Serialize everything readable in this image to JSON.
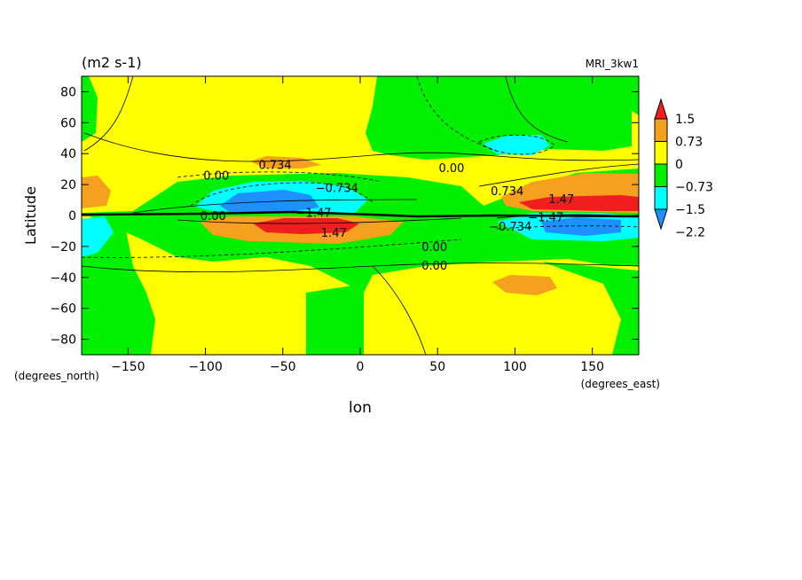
{
  "chart_data": {
    "type": "heatmap",
    "title_left": "(m2 s-1)",
    "title_right": "MRI_3kw1",
    "xlabel": "lon",
    "ylabel": "Latitude",
    "x_unit": "(degrees_east)",
    "y_unit": "(degrees_north)",
    "xlim": [
      -180,
      180
    ],
    "ylim": [
      -90,
      90
    ],
    "x_ticks": [
      -150,
      -100,
      -50,
      0,
      50,
      100,
      150
    ],
    "x_tick_labels": [
      "−150",
      "−100",
      "−50",
      "0",
      "50",
      "100",
      "150"
    ],
    "y_ticks": [
      80,
      60,
      40,
      20,
      0,
      -20,
      -40,
      -60,
      -80
    ],
    "y_tick_labels": [
      "80",
      "60",
      "40",
      "20",
      "0",
      "−20",
      "−40",
      "−60",
      "−80"
    ],
    "colorbar": {
      "labels": [
        "1.5",
        "0.73",
        "0",
        "−0.73",
        "−1.5",
        "−2.2"
      ],
      "colors": [
        "#f01e1e",
        "#f5a01e",
        "#ffff00",
        "#00f000",
        "#00ffff",
        "#1e90ff"
      ]
    },
    "contour_labels": [
      {
        "text": "0.734",
        "lon": -55,
        "lat": 33
      },
      {
        "text": "0.00",
        "lon": -93,
        "lat": 26
      },
      {
        "text": "−0.734",
        "lon": -15,
        "lat": 18
      },
      {
        "text": "0.00",
        "lon": 59,
        "lat": 31
      },
      {
        "text": "0.734",
        "lon": 95,
        "lat": 16
      },
      {
        "text": "1.47",
        "lon": 130,
        "lat": 11
      },
      {
        "text": "0.00",
        "lon": -95,
        "lat": 0
      },
      {
        "text": "−1.47",
        "lon": -30,
        "lat": 2
      },
      {
        "text": "1.47",
        "lon": -17,
        "lat": -11
      },
      {
        "text": "0.00",
        "lon": 48,
        "lat": -20
      },
      {
        "text": "0.00",
        "lon": 48,
        "lat": -32
      },
      {
        "text": "−0.734",
        "lon": 97,
        "lat": -7
      },
      {
        "text": "−1.47",
        "lon": 120,
        "lat": -1
      }
    ],
    "regions": [
      {
        "level": "0",
        "lon": [
          -180,
          180
        ],
        "lat": [
          -90,
          90
        ]
      },
      {
        "level": "−0.73",
        "lon": [
          -180,
          -130
        ],
        "lat": [
          -90,
          -20
        ]
      },
      {
        "level": "−0.73",
        "lon": [
          -180,
          -175
        ],
        "lat": [
          40,
          90
        ]
      },
      {
        "level": "−0.73",
        "lon": [
          -150,
          -40
        ],
        "lat": [
          -40,
          -15
        ]
      },
      {
        "level": "−0.73",
        "lon": [
          -120,
          80
        ],
        "lat": [
          -27,
          -15
        ]
      },
      {
        "level": "−0.73",
        "lon": [
          -130,
          70
        ],
        "lat": [
          0,
          27
        ]
      },
      {
        "level": "−0.73",
        "lon": [
          -125,
          65
        ],
        "lat": [
          -32,
          -15
        ]
      },
      {
        "level": "−0.73",
        "lon": [
          -55,
          70
        ],
        "lat": [
          -90,
          -60
        ]
      },
      {
        "level": "−0.73",
        "lon": [
          -25,
          0
        ],
        "lat": [
          -60,
          -33
        ]
      },
      {
        "level": "−0.73",
        "lon": [
          -180,
          -155
        ],
        "lat": [
          -32,
          0
        ]
      },
      {
        "level": "−0.73",
        "lon": [
          0,
          180
        ],
        "lat": [
          30,
          90
        ]
      },
      {
        "level": "−0.73",
        "lon": [
          110,
          180
        ],
        "lat": [
          -90,
          -5
        ]
      },
      {
        "level": "−0.73",
        "lon": [
          90,
          180
        ],
        "lat": [
          -25,
          -3
        ]
      },
      {
        "level": "−1.5",
        "lon": [
          -180,
          -160
        ],
        "lat": [
          -25,
          -5
        ]
      },
      {
        "level": "−1.5",
        "lon": [
          -105,
          15
        ],
        "lat": [
          1,
          21
        ]
      },
      {
        "level": "−1.5",
        "lon": [
          70,
          160
        ],
        "lat": [
          42,
          55
        ]
      },
      {
        "level": "−1.5",
        "lon": [
          90,
          180
        ],
        "lat": [
          -18,
          -2
        ]
      },
      {
        "level": "−2.2",
        "lon": [
          -80,
          -20
        ],
        "lat": [
          3,
          16
        ]
      },
      {
        "level": "−2.2",
        "lon": [
          110,
          160
        ],
        "lat": [
          -10,
          -3
        ]
      },
      {
        "level": "0.73",
        "lon": [
          -180,
          -160
        ],
        "lat": [
          5,
          25
        ]
      },
      {
        "level": "0.73",
        "lon": [
          -75,
          -5
        ],
        "lat": [
          26,
          35
        ]
      },
      {
        "level": "0.73",
        "lon": [
          -100,
          30
        ],
        "lat": [
          -14,
          0
        ]
      },
      {
        "level": "0.73",
        "lon": [
          90,
          180
        ],
        "lat": [
          2,
          23
        ]
      },
      {
        "level": "0.73",
        "lon": [
          85,
          120
        ],
        "lat": [
          -45,
          -35
        ]
      },
      {
        "level": "1.5",
        "lon": [
          -75,
          -5
        ],
        "lat": [
          -11,
          -1
        ]
      },
      {
        "level": "1.5",
        "lon": [
          100,
          180
        ],
        "lat": [
          2,
          10
        ]
      }
    ]
  }
}
